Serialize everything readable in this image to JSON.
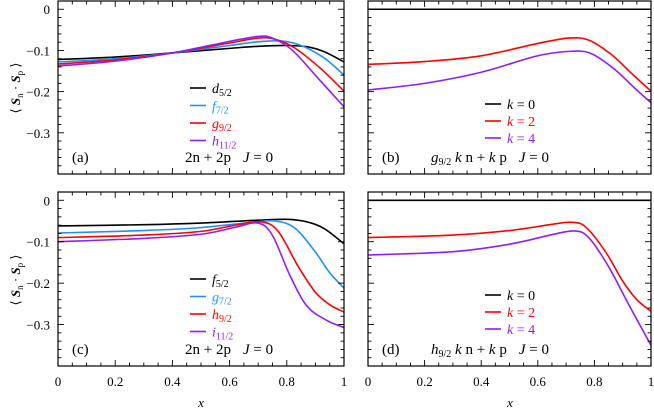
{
  "figure": {
    "ylabel": {
      "open": "⟨ ",
      "s1": "S",
      "sub1": "n",
      "dot": " · ",
      "s2": "S",
      "sub2": "p",
      "close": " ⟩"
    },
    "xlabel": "x"
  },
  "chart_data": [
    {
      "id": "a",
      "type": "line",
      "panel_label": "(a)",
      "annotation": {
        "orbital": "",
        "orbital_sub": "",
        "text": "2n + 2p",
        "J": "J",
        "Jval": " = 0"
      },
      "xlim": [
        0,
        1
      ],
      "ylim": [
        -0.4,
        0.02
      ],
      "xticks": [
        "0",
        "0.2",
        "0.4",
        "0.6",
        "0.8",
        "1"
      ],
      "yticks": [
        "0",
        "−0.1",
        "−0.2",
        "−0.3"
      ],
      "legend_placement": "center",
      "series": [
        {
          "name": "d",
          "sub": "5/2",
          "color": "#000000",
          "points": [
            [
              0,
              -0.122
            ],
            [
              0.2,
              -0.116
            ],
            [
              0.4,
              -0.106
            ],
            [
              0.6,
              -0.095
            ],
            [
              0.7,
              -0.09
            ],
            [
              0.8,
              -0.088
            ],
            [
              0.87,
              -0.091
            ],
            [
              0.93,
              -0.103
            ],
            [
              1,
              -0.128
            ]
          ]
        },
        {
          "name": "f",
          "sub": "7/2",
          "color": "#1e90ff",
          "points": [
            [
              0,
              -0.128
            ],
            [
              0.2,
              -0.12
            ],
            [
              0.4,
              -0.106
            ],
            [
              0.6,
              -0.088
            ],
            [
              0.7,
              -0.079
            ],
            [
              0.78,
              -0.077
            ],
            [
              0.85,
              -0.088
            ],
            [
              0.93,
              -0.118
            ],
            [
              1,
              -0.16
            ]
          ]
        },
        {
          "name": "g",
          "sub": "9/2",
          "color": "#ff0000",
          "points": [
            [
              0,
              -0.133
            ],
            [
              0.2,
              -0.123
            ],
            [
              0.4,
              -0.106
            ],
            [
              0.6,
              -0.082
            ],
            [
              0.7,
              -0.07
            ],
            [
              0.76,
              -0.073
            ],
            [
              0.83,
              -0.095
            ],
            [
              0.92,
              -0.145
            ],
            [
              1,
              -0.199
            ]
          ]
        },
        {
          "name": "h",
          "sub": "11/2",
          "color": "#8b1eff",
          "points": [
            [
              0,
              -0.138
            ],
            [
              0.2,
              -0.126
            ],
            [
              0.4,
              -0.106
            ],
            [
              0.6,
              -0.078
            ],
            [
              0.7,
              -0.066
            ],
            [
              0.75,
              -0.07
            ],
            [
              0.82,
              -0.1
            ],
            [
              0.91,
              -0.168
            ],
            [
              1,
              -0.237
            ]
          ]
        }
      ]
    },
    {
      "id": "b",
      "type": "line",
      "panel_label": "(b)",
      "annotation": {
        "orbital": "g",
        "orbital_sub": "9/2",
        "text": "k n + k p",
        "J": "J",
        "Jval": " = 0"
      },
      "xlim": [
        0,
        1
      ],
      "ylim": [
        -0.4,
        0.02
      ],
      "xticks": [
        "0",
        "0.2",
        "0.4",
        "0.6",
        "0.8",
        "1"
      ],
      "yticks": [
        "0",
        "−0.1",
        "−0.2",
        "−0.3"
      ],
      "legend_placement": "center",
      "series": [
        {
          "name": "k",
          "sub": "",
          "label": " = 0",
          "color": "#000000",
          "points": [
            [
              0,
              0
            ],
            [
              1,
              0
            ]
          ]
        },
        {
          "name": "k",
          "sub": "",
          "label": " = 2",
          "color": "#ff0000",
          "points": [
            [
              0,
              -0.134
            ],
            [
              0.2,
              -0.127
            ],
            [
              0.4,
              -0.113
            ],
            [
              0.6,
              -0.083
            ],
            [
              0.71,
              -0.07
            ],
            [
              0.78,
              -0.075
            ],
            [
              0.86,
              -0.11
            ],
            [
              0.93,
              -0.155
            ],
            [
              1,
              -0.199
            ]
          ]
        },
        {
          "name": "k",
          "sub": "",
          "label": " = 4",
          "color": "#8b1eff",
          "points": [
            [
              0,
              -0.196
            ],
            [
              0.2,
              -0.18
            ],
            [
              0.4,
              -0.153
            ],
            [
              0.6,
              -0.113
            ],
            [
              0.72,
              -0.102
            ],
            [
              0.79,
              -0.108
            ],
            [
              0.87,
              -0.145
            ],
            [
              0.94,
              -0.19
            ],
            [
              1,
              -0.227
            ]
          ]
        }
      ]
    },
    {
      "id": "c",
      "type": "line",
      "panel_label": "(c)",
      "annotation": {
        "orbital": "",
        "orbital_sub": "",
        "text": "2n + 2p",
        "J": "J",
        "Jval": " = 0"
      },
      "xlim": [
        0,
        1
      ],
      "ylim": [
        -0.4,
        0.02
      ],
      "xticks": [
        "0",
        "0.2",
        "0.4",
        "0.6",
        "0.8",
        "1"
      ],
      "yticks": [
        "0",
        "−0.1",
        "−0.2",
        "−0.3"
      ],
      "legend_placement": "center",
      "series": [
        {
          "name": "f",
          "sub": "5/2",
          "color": "#000000",
          "points": [
            [
              0,
              -0.062
            ],
            [
              0.3,
              -0.059
            ],
            [
              0.5,
              -0.055
            ],
            [
              0.7,
              -0.048
            ],
            [
              0.8,
              -0.046
            ],
            [
              0.87,
              -0.052
            ],
            [
              0.93,
              -0.068
            ],
            [
              1,
              -0.105
            ]
          ]
        },
        {
          "name": "g",
          "sub": "7/2",
          "color": "#1e90ff",
          "points": [
            [
              0,
              -0.079
            ],
            [
              0.3,
              -0.073
            ],
            [
              0.5,
              -0.066
            ],
            [
              0.68,
              -0.053
            ],
            [
              0.76,
              -0.05
            ],
            [
              0.83,
              -0.068
            ],
            [
              0.9,
              -0.125
            ],
            [
              0.95,
              -0.175
            ],
            [
              1,
              -0.212
            ]
          ]
        },
        {
          "name": "h",
          "sub": "9/2",
          "color": "#ff0000",
          "points": [
            [
              0,
              -0.09
            ],
            [
              0.3,
              -0.084
            ],
            [
              0.5,
              -0.075
            ],
            [
              0.62,
              -0.06
            ],
            [
              0.71,
              -0.052
            ],
            [
              0.77,
              -0.075
            ],
            [
              0.84,
              -0.16
            ],
            [
              0.9,
              -0.222
            ],
            [
              0.95,
              -0.252
            ],
            [
              1,
              -0.27
            ]
          ]
        },
        {
          "name": "i",
          "sub": "11/2",
          "color": "#8b1eff",
          "points": [
            [
              0,
              -0.1
            ],
            [
              0.3,
              -0.092
            ],
            [
              0.5,
              -0.082
            ],
            [
              0.62,
              -0.065
            ],
            [
              0.7,
              -0.055
            ],
            [
              0.75,
              -0.085
            ],
            [
              0.81,
              -0.18
            ],
            [
              0.87,
              -0.255
            ],
            [
              0.94,
              -0.29
            ],
            [
              1,
              -0.307
            ]
          ]
        }
      ]
    },
    {
      "id": "d",
      "type": "line",
      "panel_label": "(d)",
      "annotation": {
        "orbital": "h",
        "orbital_sub": "9/2",
        "text": "k n + k p",
        "J": "J",
        "Jval": " = 0"
      },
      "xlim": [
        0,
        1
      ],
      "ylim": [
        -0.4,
        0.02
      ],
      "xticks": [
        "0",
        "0.2",
        "0.4",
        "0.6",
        "0.8",
        "1"
      ],
      "yticks": [
        "0",
        "−0.1",
        "−0.2",
        "−0.3"
      ],
      "legend_placement": "center",
      "series": [
        {
          "name": "k",
          "sub": "",
          "label": " = 0",
          "color": "#000000",
          "points": [
            [
              0,
              0
            ],
            [
              1,
              0
            ]
          ]
        },
        {
          "name": "k",
          "sub": "",
          "label": " = 2",
          "color": "#ff0000",
          "points": [
            [
              0,
              -0.09
            ],
            [
              0.3,
              -0.084
            ],
            [
              0.5,
              -0.073
            ],
            [
              0.65,
              -0.058
            ],
            [
              0.72,
              -0.053
            ],
            [
              0.77,
              -0.065
            ],
            [
              0.84,
              -0.125
            ],
            [
              0.9,
              -0.195
            ],
            [
              0.95,
              -0.24
            ],
            [
              1,
              -0.268
            ]
          ]
        },
        {
          "name": "k",
          "sub": "",
          "label": " = 4",
          "color": "#8b1eff",
          "points": [
            [
              0,
              -0.132
            ],
            [
              0.3,
              -0.124
            ],
            [
              0.5,
              -0.106
            ],
            [
              0.65,
              -0.083
            ],
            [
              0.73,
              -0.074
            ],
            [
              0.78,
              -0.09
            ],
            [
              0.85,
              -0.16
            ],
            [
              0.92,
              -0.25
            ],
            [
              1,
              -0.35
            ]
          ]
        }
      ]
    }
  ]
}
